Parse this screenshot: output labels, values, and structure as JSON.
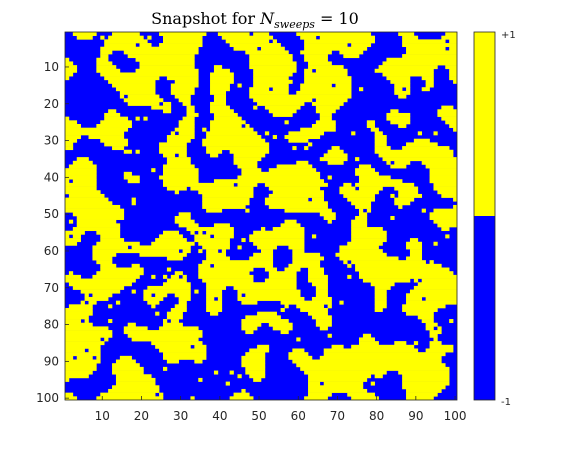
{
  "chart_data": {
    "type": "heatmap",
    "title_prefix": "Snapshot for ",
    "title_symbol": "N",
    "title_subscript": "sweeps",
    "title_suffix": " = 10",
    "x_range": [
      1,
      100
    ],
    "y_range": [
      1,
      100
    ],
    "x_ticks": [
      "10",
      "20",
      "30",
      "40",
      "50",
      "60",
      "70",
      "80",
      "90",
      "100"
    ],
    "y_ticks": [
      "10",
      "20",
      "30",
      "40",
      "50",
      "60",
      "70",
      "80",
      "90",
      "100"
    ],
    "grid": false,
    "colorbar": {
      "placement": "right",
      "top_label": "+1",
      "bottom_label": "-1",
      "levels": [
        {
          "value": 1,
          "color": "#FFFF00"
        },
        {
          "value": -1,
          "color": "#0000FF"
        }
      ]
    },
    "colors": {
      "plus_one": "#FFFF00",
      "minus_one": "#0000FF"
    },
    "lattice_size": 100,
    "seed": 20241
  }
}
